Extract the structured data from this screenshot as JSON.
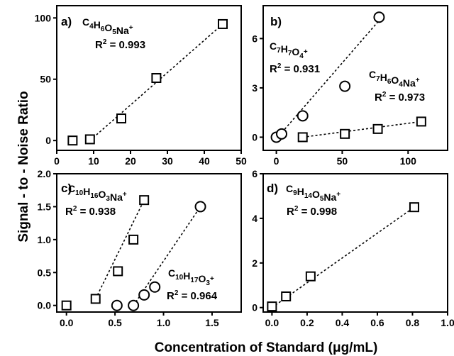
{
  "figure": {
    "ylabel": "Signal - to - Noise Ratio",
    "xlabel": "Concentration of Standard (μg/mL)"
  },
  "chart_data": [
    {
      "type": "scatter",
      "panel": "a)",
      "xlim": [
        0,
        50
      ],
      "ylim": [
        -8,
        110
      ],
      "xticks": [
        "0",
        "10",
        "20",
        "30",
        "40",
        "50"
      ],
      "yticks": [
        "0",
        "50",
        "100"
      ],
      "series": [
        {
          "name": "C4H6O5Na+",
          "marker": "square",
          "x": [
            4.3,
            9.0,
            17.5,
            27.0,
            45.0
          ],
          "y": [
            0,
            1,
            18,
            51,
            95
          ]
        }
      ],
      "fits": [
        {
          "x": [
            9.0,
            45.0
          ],
          "y": [
            0,
            95
          ]
        }
      ],
      "annotations": [
        {
          "text": "R² = 0.993"
        }
      ]
    },
    {
      "type": "scatter",
      "panel": "b)",
      "xlim": [
        -10,
        130
      ],
      "ylim": [
        -0.8,
        8
      ],
      "xticks": [
        "0",
        "50",
        "100"
      ],
      "yticks": [
        "0",
        "3",
        "6"
      ],
      "series": [
        {
          "name": "C7H7O4+",
          "marker": "circle",
          "x": [
            0,
            4,
            20,
            52,
            78
          ],
          "y": [
            0,
            0.2,
            1.3,
            3.1,
            7.3
          ]
        },
        {
          "name": "C7H6O4Na+",
          "marker": "square",
          "x": [
            20,
            52,
            77,
            110
          ],
          "y": [
            0,
            0.2,
            0.5,
            0.95
          ]
        }
      ],
      "fits": [
        {
          "x": [
            0,
            78
          ],
          "y": [
            -0.1,
            7.1
          ]
        },
        {
          "x": [
            20,
            110
          ],
          "y": [
            0,
            0.95
          ]
        }
      ],
      "annotations": [
        {
          "text": "R² = 0.931"
        },
        {
          "text": "R² = 0.973"
        }
      ]
    },
    {
      "type": "scatter",
      "panel": "c)",
      "xlim": [
        -0.1,
        1.8
      ],
      "ylim": [
        -0.1,
        2.0
      ],
      "xticks": [
        "0.0",
        "0.5",
        "1.0",
        "1.5"
      ],
      "yticks": [
        "0.0",
        "0.5",
        "1.0",
        "1.5",
        "2.0"
      ],
      "series": [
        {
          "name": "C10H16O3Na+",
          "marker": "square",
          "x": [
            0,
            0.3,
            0.53,
            0.69,
            0.8
          ],
          "y": [
            0,
            0.1,
            0.52,
            1.0,
            1.6
          ]
        },
        {
          "name": "C10H17O3+",
          "marker": "circle",
          "x": [
            0.52,
            0.69,
            0.8,
            0.91,
            1.38
          ],
          "y": [
            0,
            0,
            0.16,
            0.28,
            1.5
          ]
        }
      ],
      "fits": [
        {
          "x": [
            0.3,
            0.8
          ],
          "y": [
            0.1,
            1.6
          ]
        },
        {
          "x": [
            0.69,
            1.38
          ],
          "y": [
            0,
            1.5
          ]
        }
      ],
      "annotations": [
        {
          "text": "R² = 0.938"
        },
        {
          "text": "R² = 0.964"
        }
      ]
    },
    {
      "type": "scatter",
      "panel": "d)",
      "xlim": [
        -0.05,
        1.0
      ],
      "ylim": [
        -0.2,
        6
      ],
      "xticks": [
        "0.0",
        "0.2",
        "0.4",
        "0.6",
        "0.8",
        "1.0"
      ],
      "yticks": [
        "0",
        "2",
        "4",
        "6"
      ],
      "series": [
        {
          "name": "C9H14O5Na+",
          "marker": "square",
          "x": [
            0,
            0.08,
            0.22,
            0.81
          ],
          "y": [
            0.05,
            0.5,
            1.4,
            4.5
          ]
        }
      ],
      "fits": [
        {
          "x": [
            0,
            0.81
          ],
          "y": [
            0,
            4.5
          ]
        }
      ],
      "annotations": [
        {
          "text": "R² = 0.998"
        }
      ]
    }
  ]
}
